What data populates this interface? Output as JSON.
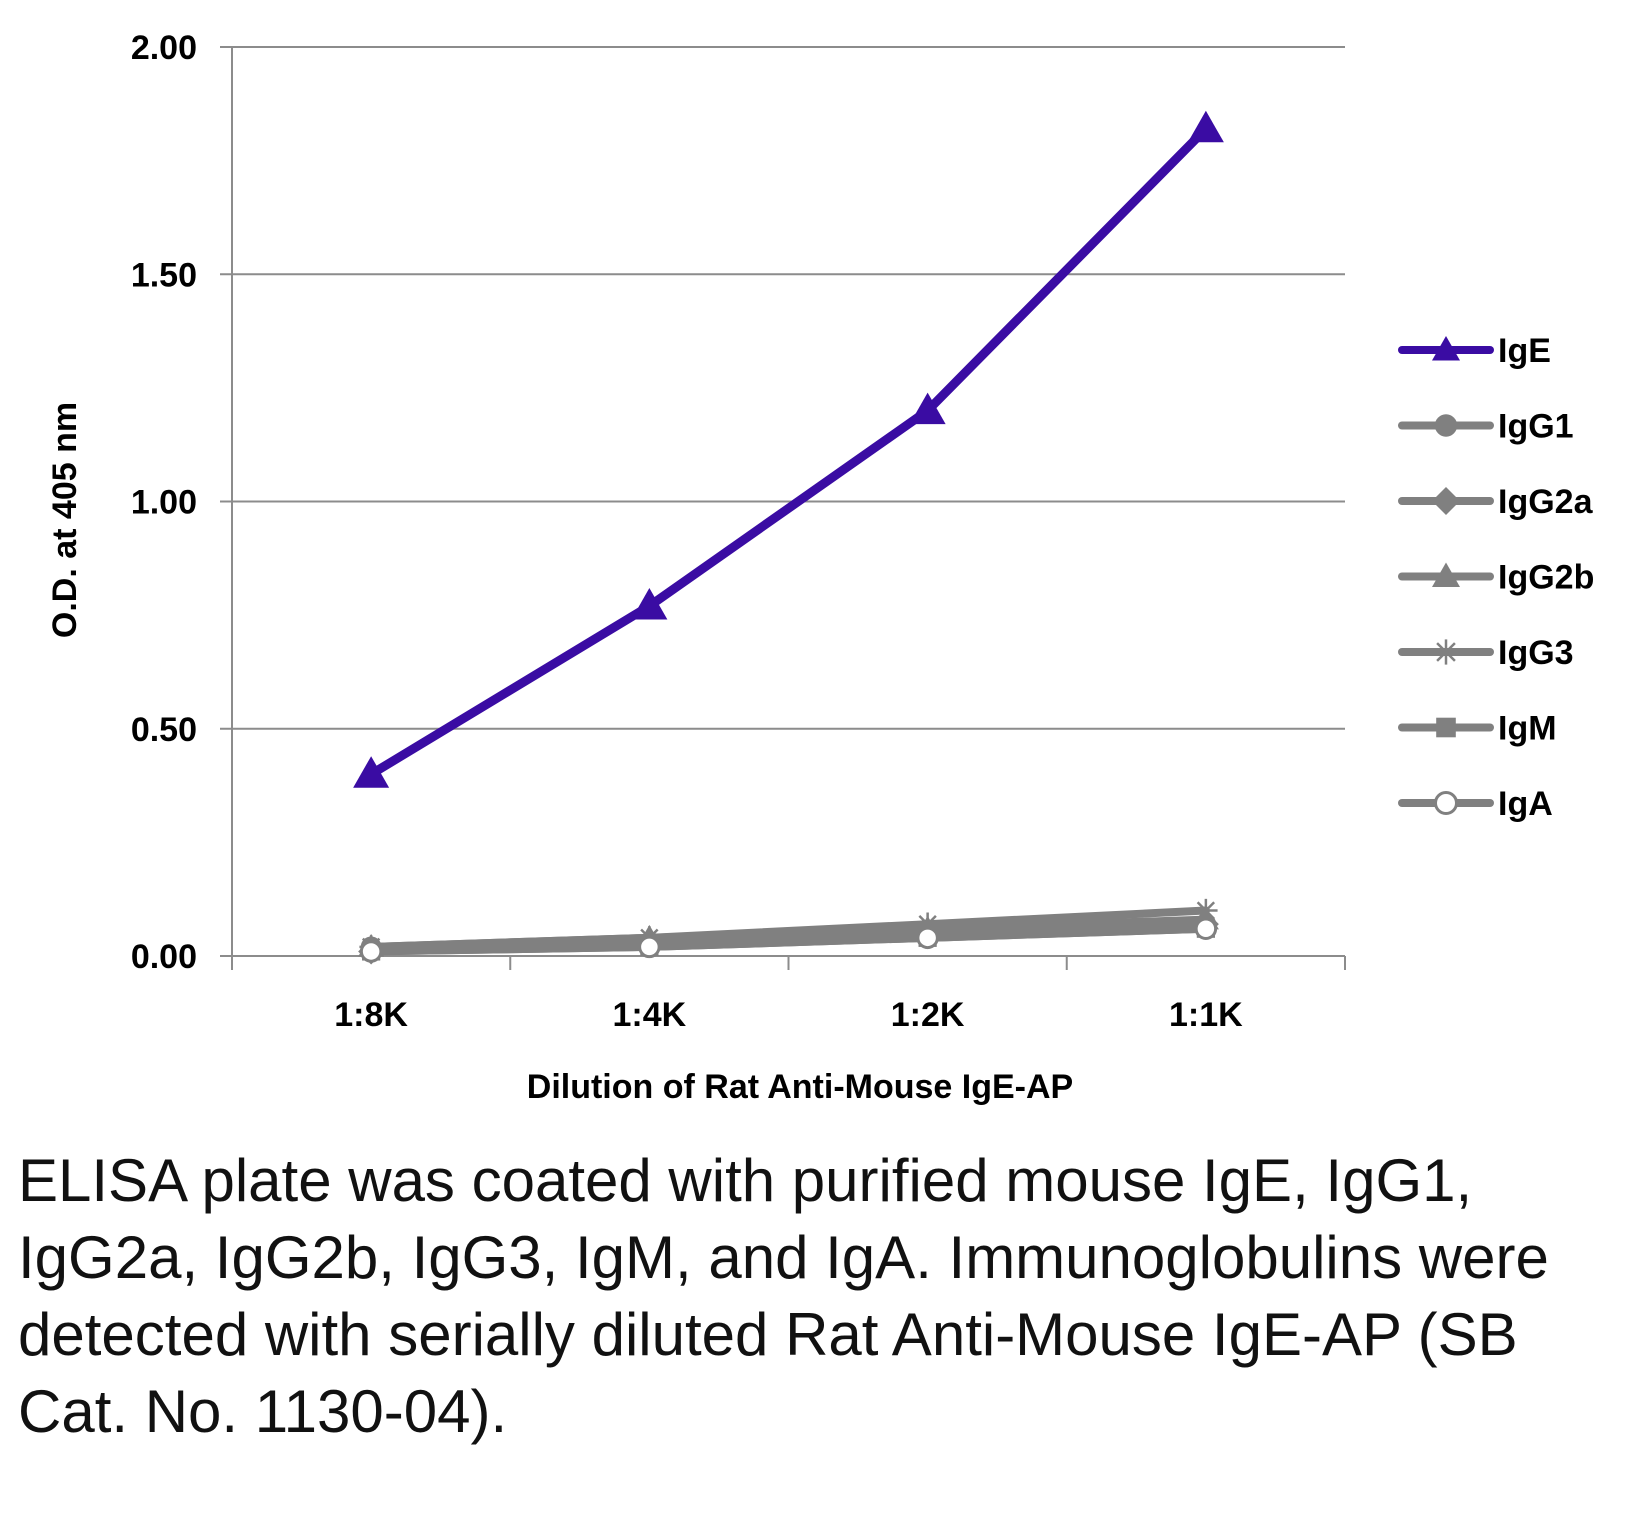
{
  "chart_data": {
    "type": "line",
    "title": "",
    "xlabel": "Dilution of Rat Anti-Mouse IgE-AP",
    "ylabel": "O.D. at 405 nm",
    "categories": [
      "1:8K",
      "1:4K",
      "1:2K",
      "1:1K"
    ],
    "ylim": [
      0,
      2.0
    ],
    "yticks": [
      "0.00",
      "0.50",
      "1.00",
      "1.50",
      "2.00"
    ],
    "grid": true,
    "legend_position": "right",
    "series": [
      {
        "name": "IgE",
        "marker": "triangle",
        "color": "#3a0ca3",
        "values": [
          0.4,
          0.77,
          1.2,
          1.82
        ]
      },
      {
        "name": "IgG1",
        "marker": "circle",
        "color": "#808080",
        "values": [
          0.02,
          0.03,
          0.05,
          0.07
        ]
      },
      {
        "name": "IgG2a",
        "marker": "diamond",
        "color": "#808080",
        "values": [
          0.01,
          0.03,
          0.05,
          0.07
        ]
      },
      {
        "name": "IgG2b",
        "marker": "triangle",
        "color": "#808080",
        "values": [
          0.02,
          0.04,
          0.06,
          0.08
        ]
      },
      {
        "name": "IgG3",
        "marker": "star",
        "color": "#808080",
        "values": [
          0.02,
          0.04,
          0.07,
          0.1
        ]
      },
      {
        "name": "IgM",
        "marker": "square",
        "color": "#808080",
        "values": [
          0.01,
          0.02,
          0.04,
          0.06
        ]
      },
      {
        "name": "IgA",
        "marker": "open-circle",
        "color": "#808080",
        "values": [
          0.01,
          0.02,
          0.04,
          0.06
        ]
      }
    ]
  },
  "caption": "ELISA plate was coated with purified mouse IgE, IgG1, IgG2a, IgG2b, IgG3, IgM, and IgA.  Immunoglobulins were detected with serially diluted Rat Anti-Mouse IgE-AP (SB Cat. No. 1130-04)."
}
